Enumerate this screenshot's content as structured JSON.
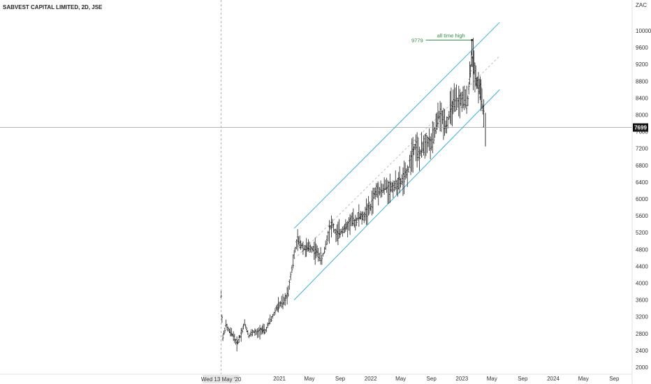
{
  "chart_data": {
    "type": "bar",
    "title": "SABVEST CAPITAL LIMITED, 2D, JSE",
    "currency": "ZAC",
    "ylim": [
      1900,
      10500
    ],
    "y_ticks": [
      2000,
      2400,
      2800,
      3200,
      3600,
      4000,
      4400,
      4800,
      5200,
      5600,
      6000,
      6400,
      6800,
      7200,
      7600,
      8000,
      8400,
      8800,
      9200,
      9600,
      10000
    ],
    "x_tick_labels": [
      {
        "label": "2021",
        "date": "2021-01-01"
      },
      {
        "label": "May",
        "date": "2021-05-01"
      },
      {
        "label": "Sep",
        "date": "2021-09-01"
      },
      {
        "label": "2022",
        "date": "2022-01-01"
      },
      {
        "label": "May",
        "date": "2022-05-01"
      },
      {
        "label": "Sep",
        "date": "2022-09-01"
      },
      {
        "label": "2023",
        "date": "2023-01-01"
      },
      {
        "label": "May",
        "date": "2023-05-01"
      },
      {
        "label": "Sep",
        "date": "2023-09-01"
      },
      {
        "label": "2024",
        "date": "2024-01-01"
      },
      {
        "label": "May",
        "date": "2024-05-01"
      },
      {
        "label": "Sep",
        "date": "2024-09-01"
      }
    ],
    "crosshair": {
      "date": "2020-05-13",
      "label": "Wed 13 May '20",
      "price": 7699,
      "price_label": "7699"
    },
    "price_path": [
      [
        "2020-05-13",
        3700
      ],
      [
        "2020-05-20",
        2700
      ],
      [
        "2020-06-01",
        3000
      ],
      [
        "2020-06-15",
        2850
      ],
      [
        "2020-07-01",
        2750
      ],
      [
        "2020-07-15",
        2550
      ],
      [
        "2020-08-01",
        2800
      ],
      [
        "2020-08-15",
        3050
      ],
      [
        "2020-09-01",
        2750
      ],
      [
        "2020-09-20",
        2850
      ],
      [
        "2020-10-05",
        2800
      ],
      [
        "2020-10-20",
        2900
      ],
      [
        "2020-11-05",
        2850
      ],
      [
        "2020-11-20",
        3050
      ],
      [
        "2020-12-05",
        3200
      ],
      [
        "2020-12-20",
        3400
      ],
      [
        "2021-01-05",
        3500
      ],
      [
        "2021-01-20",
        3550
      ],
      [
        "2021-02-05",
        3800
      ],
      [
        "2021-02-15",
        4200
      ],
      [
        "2021-02-25",
        4500
      ],
      [
        "2021-03-05",
        4800
      ],
      [
        "2021-03-15",
        5000
      ],
      [
        "2021-04-01",
        4900
      ],
      [
        "2021-04-15",
        4800
      ],
      [
        "2021-05-01",
        4850
      ],
      [
        "2021-05-20",
        4800
      ],
      [
        "2021-06-05",
        4700
      ],
      [
        "2021-06-20",
        4550
      ],
      [
        "2021-07-05",
        4900
      ],
      [
        "2021-07-20",
        5300
      ],
      [
        "2021-08-01",
        5400
      ],
      [
        "2021-08-15",
        5150
      ],
      [
        "2021-09-01",
        5200
      ],
      [
        "2021-09-15",
        5300
      ],
      [
        "2021-10-01",
        5350
      ],
      [
        "2021-10-15",
        5500
      ],
      [
        "2021-11-01",
        5450
      ],
      [
        "2021-11-15",
        5600
      ],
      [
        "2021-12-01",
        5550
      ],
      [
        "2021-12-15",
        5700
      ],
      [
        "2022-01-01",
        5800
      ],
      [
        "2022-01-15",
        6100
      ],
      [
        "2022-02-01",
        6250
      ],
      [
        "2022-02-15",
        6200
      ],
      [
        "2022-03-01",
        6300
      ],
      [
        "2022-03-15",
        6250
      ],
      [
        "2022-04-01",
        6300
      ],
      [
        "2022-04-15",
        6350
      ],
      [
        "2022-05-01",
        6400
      ],
      [
        "2022-05-15",
        6500
      ],
      [
        "2022-06-01",
        6700
      ],
      [
        "2022-06-15",
        7100
      ],
      [
        "2022-07-01",
        7300
      ],
      [
        "2022-07-15",
        7000
      ],
      [
        "2022-08-01",
        7300
      ],
      [
        "2022-08-15",
        7400
      ],
      [
        "2022-09-01",
        7300
      ],
      [
        "2022-09-15",
        7600
      ],
      [
        "2022-10-01",
        8000
      ],
      [
        "2022-10-15",
        7900
      ],
      [
        "2022-11-01",
        7750
      ],
      [
        "2022-11-15",
        8100
      ],
      [
        "2022-12-01",
        8250
      ],
      [
        "2022-12-15",
        8300
      ],
      [
        "2023-01-01",
        8350
      ],
      [
        "2023-01-15",
        8300
      ],
      [
        "2023-01-25",
        8400
      ],
      [
        "2023-02-01",
        8900
      ],
      [
        "2023-02-08",
        9300
      ],
      [
        "2023-02-15",
        9250
      ],
      [
        "2023-02-22",
        9050
      ],
      [
        "2023-03-01",
        8800
      ],
      [
        "2023-03-08",
        8700
      ],
      [
        "2023-03-15",
        8600
      ],
      [
        "2023-03-22",
        8350
      ],
      [
        "2023-03-29",
        7900
      ],
      [
        "2023-04-03",
        7699
      ]
    ],
    "channel": {
      "upper": [
        [
          "2021-03-01",
          5300
        ],
        [
          "2023-06-01",
          10200
        ]
      ],
      "lower": [
        [
          "2021-03-01",
          3600
        ],
        [
          "2023-06-01",
          8600
        ]
      ],
      "mid": [
        [
          "2021-03-15",
          4650
        ],
        [
          "2023-06-01",
          9400
        ]
      ]
    },
    "all_time_high": {
      "value": 9779,
      "label": "9779",
      "text": "all time high",
      "date": "2023-02-10"
    }
  },
  "colors": {
    "bar": "#1e1e1e",
    "channel": "#3ab3d6",
    "mid_line": "#bdbdbd",
    "annotation": "#2e8b3e",
    "crosshair": "#9e9e9e",
    "price_tag_bg": "#111111",
    "price_tag_text": "#ffffff"
  }
}
